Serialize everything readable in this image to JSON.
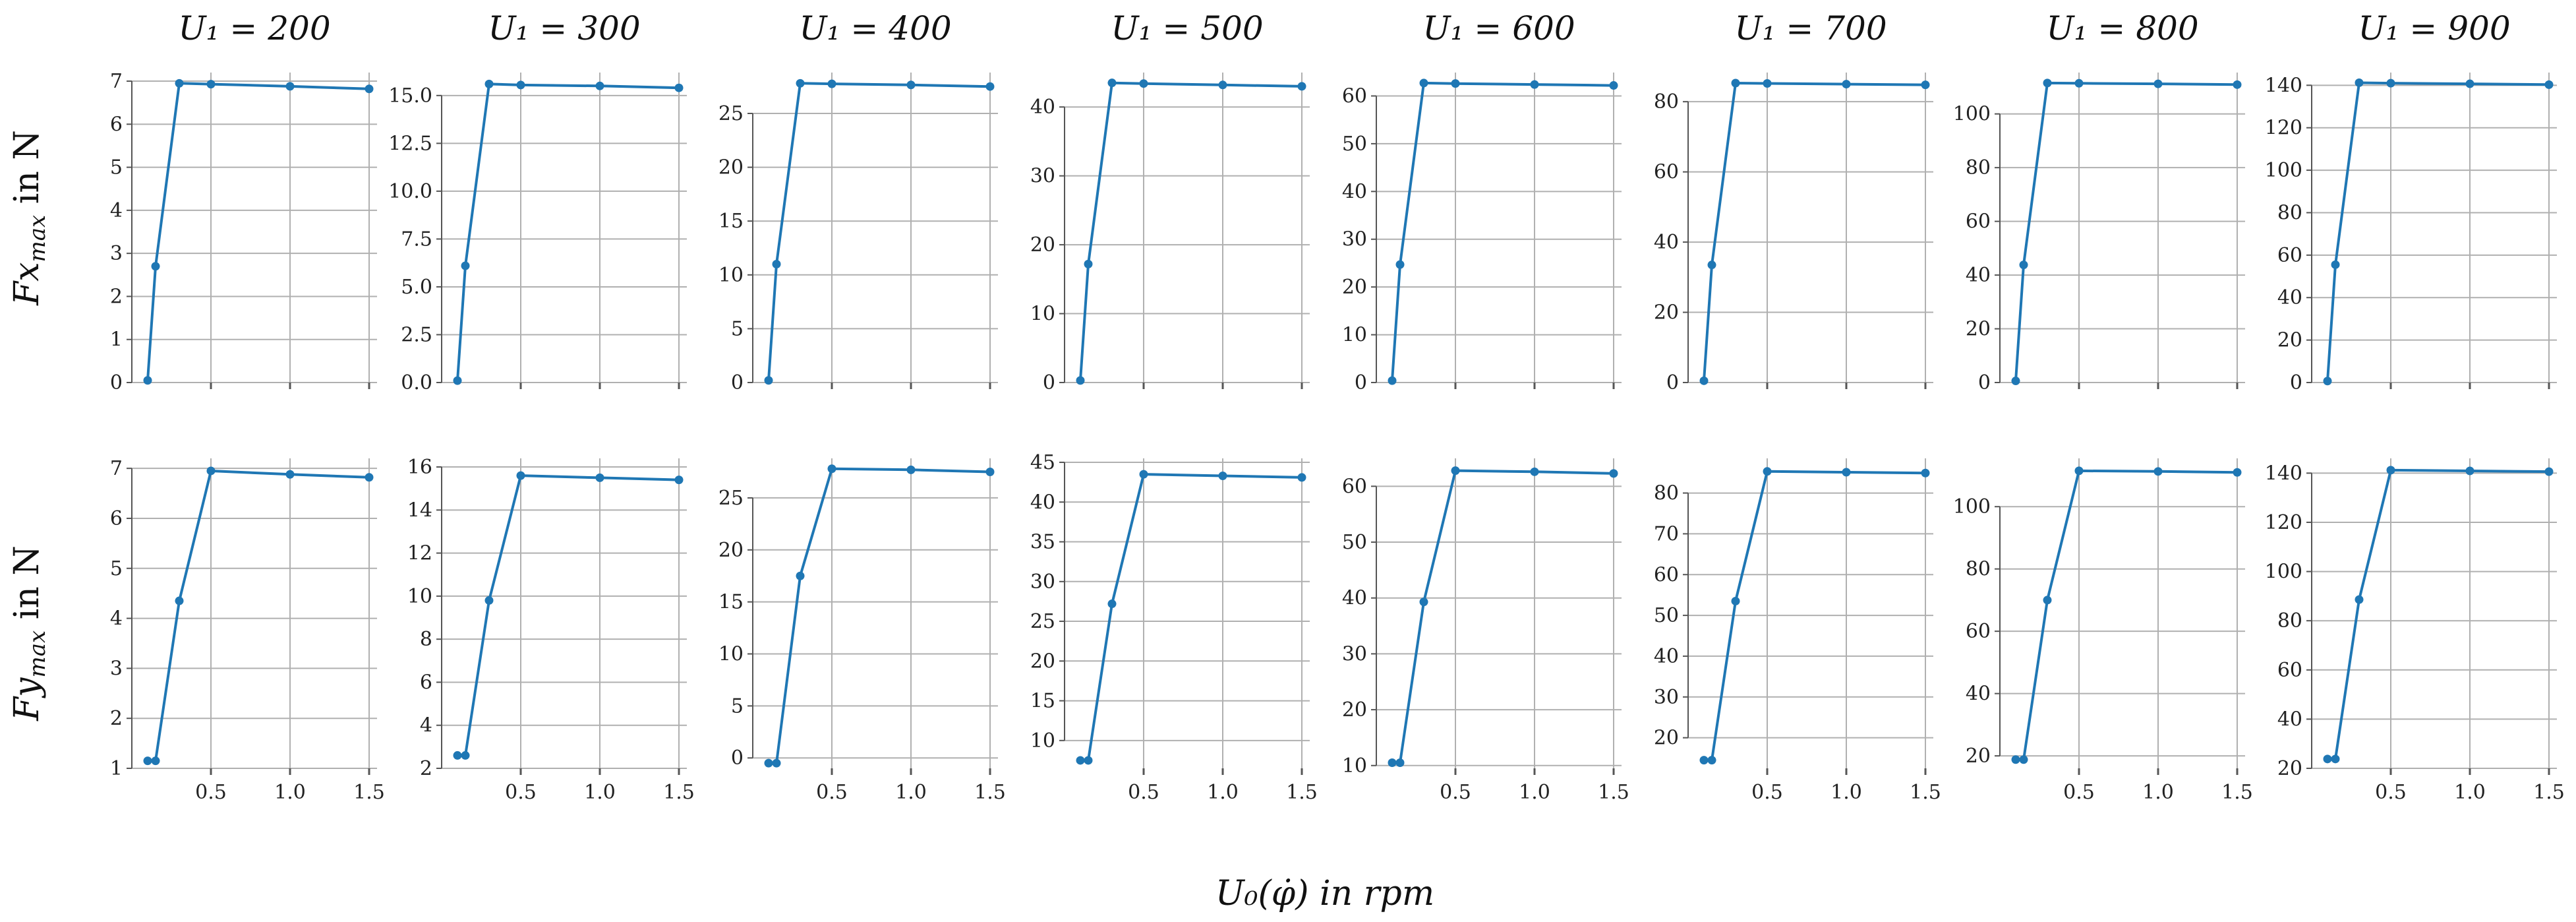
{
  "colors": {
    "series": "#1f77b4",
    "grid": "#b0b0b0",
    "axis": "#555555",
    "background": "#ffffff"
  },
  "figure": {
    "xlabel": "U₀(φ̇) in rpm",
    "row_ylabels": [
      {
        "main": "Fx",
        "sub": "max",
        "unit": " in N"
      },
      {
        "main": "Fy",
        "sub": "max",
        "unit": " in N"
      }
    ]
  },
  "chart_data": [
    {
      "type": "line",
      "title": "U₁ = 200",
      "row": 0,
      "col": 0,
      "ylabel": "Fx_max in N",
      "xlabel": "",
      "x": [
        0.1,
        0.15,
        0.3,
        0.5,
        1.0,
        1.5
      ],
      "y": [
        0.05,
        2.7,
        6.95,
        6.93,
        6.88,
        6.82
      ],
      "ylim": [
        0,
        7.2
      ],
      "yticks": [
        0,
        1,
        2,
        3,
        4,
        5,
        6,
        7
      ],
      "ytick_labels": [
        "0",
        "1",
        "2",
        "3",
        "4",
        "5",
        "6",
        "7"
      ],
      "xlim": [
        0,
        1.55
      ],
      "xticks": [
        0.5,
        1.0,
        1.5
      ],
      "xtick_labels": [
        "",
        "",
        ""
      ],
      "grid": true
    },
    {
      "type": "line",
      "title": "U₁ = 300",
      "row": 0,
      "col": 1,
      "ylabel": "",
      "xlabel": "",
      "x": [
        0.1,
        0.15,
        0.3,
        0.5,
        1.0,
        1.5
      ],
      "y": [
        0.1,
        6.1,
        15.6,
        15.55,
        15.5,
        15.4
      ],
      "ylim": [
        0,
        16.2
      ],
      "yticks": [
        0,
        2.5,
        5.0,
        7.5,
        10.0,
        12.5,
        15.0
      ],
      "ytick_labels": [
        "0.0",
        "2.5",
        "5.0",
        "7.5",
        "10.0",
        "12.5",
        "15.0"
      ],
      "xlim": [
        0,
        1.55
      ],
      "xticks": [
        0.5,
        1.0,
        1.5
      ],
      "xtick_labels": [
        "",
        "",
        ""
      ],
      "grid": true
    },
    {
      "type": "line",
      "title": "U₁ = 400",
      "row": 0,
      "col": 2,
      "ylabel": "",
      "xlabel": "",
      "x": [
        0.1,
        0.15,
        0.3,
        0.5,
        1.0,
        1.5
      ],
      "y": [
        0.2,
        11.0,
        27.8,
        27.75,
        27.65,
        27.5
      ],
      "ylim": [
        0,
        28.8
      ],
      "yticks": [
        0,
        5,
        10,
        15,
        20,
        25
      ],
      "ytick_labels": [
        "0",
        "5",
        "10",
        "15",
        "20",
        "25"
      ],
      "xlim": [
        0,
        1.55
      ],
      "xticks": [
        0.5,
        1.0,
        1.5
      ],
      "xtick_labels": [
        "",
        "",
        ""
      ],
      "grid": true
    },
    {
      "type": "line",
      "title": "U₁ = 500",
      "row": 0,
      "col": 3,
      "ylabel": "",
      "xlabel": "",
      "x": [
        0.1,
        0.15,
        0.3,
        0.5,
        1.0,
        1.5
      ],
      "y": [
        0.3,
        17.2,
        43.5,
        43.4,
        43.2,
        43.0
      ],
      "ylim": [
        0,
        45.0
      ],
      "yticks": [
        0,
        10,
        20,
        30,
        40
      ],
      "ytick_labels": [
        "0",
        "10",
        "20",
        "30",
        "40"
      ],
      "xlim": [
        0,
        1.55
      ],
      "xticks": [
        0.5,
        1.0,
        1.5
      ],
      "xtick_labels": [
        "",
        "",
        ""
      ],
      "grid": true
    },
    {
      "type": "line",
      "title": "U₁ = 600",
      "row": 0,
      "col": 4,
      "ylabel": "",
      "xlabel": "",
      "x": [
        0.1,
        0.15,
        0.3,
        0.5,
        1.0,
        1.5
      ],
      "y": [
        0.4,
        24.7,
        62.7,
        62.6,
        62.4,
        62.2
      ],
      "ylim": [
        0,
        64.9
      ],
      "yticks": [
        0,
        10,
        20,
        30,
        40,
        50,
        60
      ],
      "ytick_labels": [
        "0",
        "10",
        "20",
        "30",
        "40",
        "50",
        "60"
      ],
      "xlim": [
        0,
        1.55
      ],
      "xticks": [
        0.5,
        1.0,
        1.5
      ],
      "xtick_labels": [
        "",
        "",
        ""
      ],
      "grid": true
    },
    {
      "type": "line",
      "title": "U₁ = 700",
      "row": 0,
      "col": 5,
      "ylabel": "",
      "xlabel": "",
      "x": [
        0.1,
        0.15,
        0.3,
        0.5,
        1.0,
        1.5
      ],
      "y": [
        0.5,
        33.5,
        85.3,
        85.2,
        85.0,
        84.8
      ],
      "ylim": [
        0,
        88.3
      ],
      "yticks": [
        0,
        20,
        40,
        60,
        80
      ],
      "ytick_labels": [
        "0",
        "20",
        "40",
        "60",
        "80"
      ],
      "xlim": [
        0,
        1.55
      ],
      "xticks": [
        0.5,
        1.0,
        1.5
      ],
      "xtick_labels": [
        "",
        "",
        ""
      ],
      "grid": true
    },
    {
      "type": "line",
      "title": "U₁ = 800",
      "row": 0,
      "col": 6,
      "ylabel": "",
      "xlabel": "",
      "x": [
        0.1,
        0.15,
        0.3,
        0.5,
        1.0,
        1.5
      ],
      "y": [
        0.6,
        43.8,
        111.5,
        111.4,
        111.2,
        110.9
      ],
      "ylim": [
        0,
        115.4
      ],
      "yticks": [
        0,
        20,
        40,
        60,
        80,
        100
      ],
      "ytick_labels": [
        "0",
        "20",
        "40",
        "60",
        "80",
        "100"
      ],
      "xlim": [
        0,
        1.55
      ],
      "xticks": [
        0.5,
        1.0,
        1.5
      ],
      "xtick_labels": [
        "",
        "",
        ""
      ],
      "grid": true
    },
    {
      "type": "line",
      "title": "U₁ = 900",
      "row": 0,
      "col": 7,
      "ylabel": "",
      "xlabel": "",
      "x": [
        0.1,
        0.15,
        0.3,
        0.5,
        1.0,
        1.5
      ],
      "y": [
        0.7,
        55.5,
        141.2,
        141.0,
        140.7,
        140.3
      ],
      "ylim": [
        0,
        146.0
      ],
      "yticks": [
        0,
        20,
        40,
        60,
        80,
        100,
        120,
        140
      ],
      "ytick_labels": [
        "0",
        "20",
        "40",
        "60",
        "80",
        "100",
        "120",
        "140"
      ],
      "xlim": [
        0,
        1.55
      ],
      "xticks": [
        0.5,
        1.0,
        1.5
      ],
      "xtick_labels": [
        "",
        "",
        ""
      ],
      "grid": true
    },
    {
      "type": "line",
      "title": "",
      "row": 1,
      "col": 0,
      "ylabel": "Fy_max in N",
      "xlabel": "",
      "x": [
        0.1,
        0.15,
        0.3,
        0.5,
        1.0,
        1.5
      ],
      "y": [
        1.15,
        1.15,
        4.35,
        6.95,
        6.88,
        6.82
      ],
      "ylim": [
        1.0,
        7.2
      ],
      "yticks": [
        1,
        2,
        3,
        4,
        5,
        6,
        7
      ],
      "ytick_labels": [
        "1",
        "2",
        "3",
        "4",
        "5",
        "6",
        "7"
      ],
      "xlim": [
        0,
        1.55
      ],
      "xticks": [
        0.5,
        1.0,
        1.5
      ],
      "xtick_labels": [
        "0.5",
        "1.0",
        "1.5"
      ],
      "grid": true
    },
    {
      "type": "line",
      "title": "",
      "row": 1,
      "col": 1,
      "ylabel": "",
      "xlabel": "",
      "x": [
        0.1,
        0.15,
        0.3,
        0.5,
        1.0,
        1.5
      ],
      "y": [
        2.6,
        2.6,
        9.8,
        15.6,
        15.5,
        15.4
      ],
      "ylim": [
        2.0,
        16.4
      ],
      "yticks": [
        2,
        4,
        6,
        8,
        10,
        12,
        14,
        16
      ],
      "ytick_labels": [
        "2",
        "4",
        "6",
        "8",
        "10",
        "12",
        "14",
        "16"
      ],
      "xlim": [
        0,
        1.55
      ],
      "xticks": [
        0.5,
        1.0,
        1.5
      ],
      "xtick_labels": [
        "0.5",
        "1.0",
        "1.5"
      ],
      "grid": true
    },
    {
      "type": "line",
      "title": "",
      "row": 1,
      "col": 2,
      "ylabel": "",
      "xlabel": "",
      "x": [
        0.1,
        0.15,
        0.3,
        0.5,
        1.0,
        1.5
      ],
      "y": [
        -0.5,
        -0.5,
        17.5,
        27.8,
        27.7,
        27.5
      ],
      "ylim": [
        -1.0,
        28.8
      ],
      "yticks": [
        0,
        5,
        10,
        15,
        20,
        25
      ],
      "ytick_labels": [
        "0",
        "5",
        "10",
        "15",
        "20",
        "25"
      ],
      "xlim": [
        0,
        1.55
      ],
      "xticks": [
        0.5,
        1.0,
        1.5
      ],
      "xtick_labels": [
        "0.5",
        "1.0",
        "1.5"
      ],
      "grid": true
    },
    {
      "type": "line",
      "title": "",
      "row": 1,
      "col": 3,
      "ylabel": "",
      "xlabel": "",
      "x": [
        0.1,
        0.15,
        0.3,
        0.5,
        1.0,
        1.5
      ],
      "y": [
        7.5,
        7.5,
        27.2,
        43.5,
        43.3,
        43.1
      ],
      "ylim": [
        6.5,
        45.5
      ],
      "yticks": [
        10,
        15,
        20,
        25,
        30,
        35,
        40,
        45
      ],
      "ytick_labels": [
        "10",
        "15",
        "20",
        "25",
        "30",
        "35",
        "40",
        "45"
      ],
      "xlim": [
        0,
        1.55
      ],
      "xticks": [
        0.5,
        1.0,
        1.5
      ],
      "xtick_labels": [
        "0.5",
        "1.0",
        "1.5"
      ],
      "grid": true
    },
    {
      "type": "line",
      "title": "",
      "row": 1,
      "col": 4,
      "ylabel": "",
      "xlabel": "",
      "x": [
        0.1,
        0.15,
        0.3,
        0.5,
        1.0,
        1.5
      ],
      "y": [
        10.5,
        10.5,
        39.3,
        62.8,
        62.6,
        62.3
      ],
      "ylim": [
        9.5,
        65.0
      ],
      "yticks": [
        10,
        20,
        30,
        40,
        50,
        60
      ],
      "ytick_labels": [
        "10",
        "20",
        "30",
        "40",
        "50",
        "60"
      ],
      "xlim": [
        0,
        1.55
      ],
      "xticks": [
        0.5,
        1.0,
        1.5
      ],
      "xtick_labels": [
        "0.5",
        "1.0",
        "1.5"
      ],
      "grid": true
    },
    {
      "type": "line",
      "title": "",
      "row": 1,
      "col": 5,
      "ylabel": "",
      "xlabel": "",
      "x": [
        0.1,
        0.15,
        0.3,
        0.5,
        1.0,
        1.5
      ],
      "y": [
        14.5,
        14.5,
        53.5,
        85.3,
        85.1,
        84.9
      ],
      "ylim": [
        12.5,
        88.5
      ],
      "yticks": [
        20,
        30,
        40,
        50,
        60,
        70,
        80
      ],
      "ytick_labels": [
        "20",
        "30",
        "40",
        "50",
        "60",
        "70",
        "80"
      ],
      "xlim": [
        0,
        1.55
      ],
      "xticks": [
        0.5,
        1.0,
        1.5
      ],
      "xtick_labels": [
        "0.5",
        "1.0",
        "1.5"
      ],
      "grid": true
    },
    {
      "type": "line",
      "title": "",
      "row": 1,
      "col": 6,
      "ylabel": "",
      "xlabel": "",
      "x": [
        0.1,
        0.15,
        0.3,
        0.5,
        1.0,
        1.5
      ],
      "y": [
        18.8,
        18.8,
        70.0,
        111.5,
        111.3,
        111.0
      ],
      "ylim": [
        16.0,
        115.5
      ],
      "yticks": [
        20,
        40,
        60,
        80,
        100
      ],
      "ytick_labels": [
        "20",
        "40",
        "60",
        "80",
        "100"
      ],
      "xlim": [
        0,
        1.55
      ],
      "xticks": [
        0.5,
        1.0,
        1.5
      ],
      "xtick_labels": [
        "0.5",
        "1.0",
        "1.5"
      ],
      "grid": true
    },
    {
      "type": "line",
      "title": "",
      "row": 1,
      "col": 7,
      "ylabel": "",
      "xlabel": "",
      "x": [
        0.1,
        0.15,
        0.3,
        0.5,
        1.0,
        1.5
      ],
      "y": [
        23.8,
        23.8,
        88.6,
        141.2,
        140.9,
        140.6
      ],
      "ylim": [
        20.0,
        146.0
      ],
      "yticks": [
        20,
        40,
        60,
        80,
        100,
        120,
        140
      ],
      "ytick_labels": [
        "20",
        "40",
        "60",
        "80",
        "100",
        "120",
        "140"
      ],
      "xlim": [
        0,
        1.55
      ],
      "xticks": [
        0.5,
        1.0,
        1.5
      ],
      "xtick_labels": [
        "0.5",
        "1.0",
        "1.5"
      ],
      "grid": true
    }
  ]
}
